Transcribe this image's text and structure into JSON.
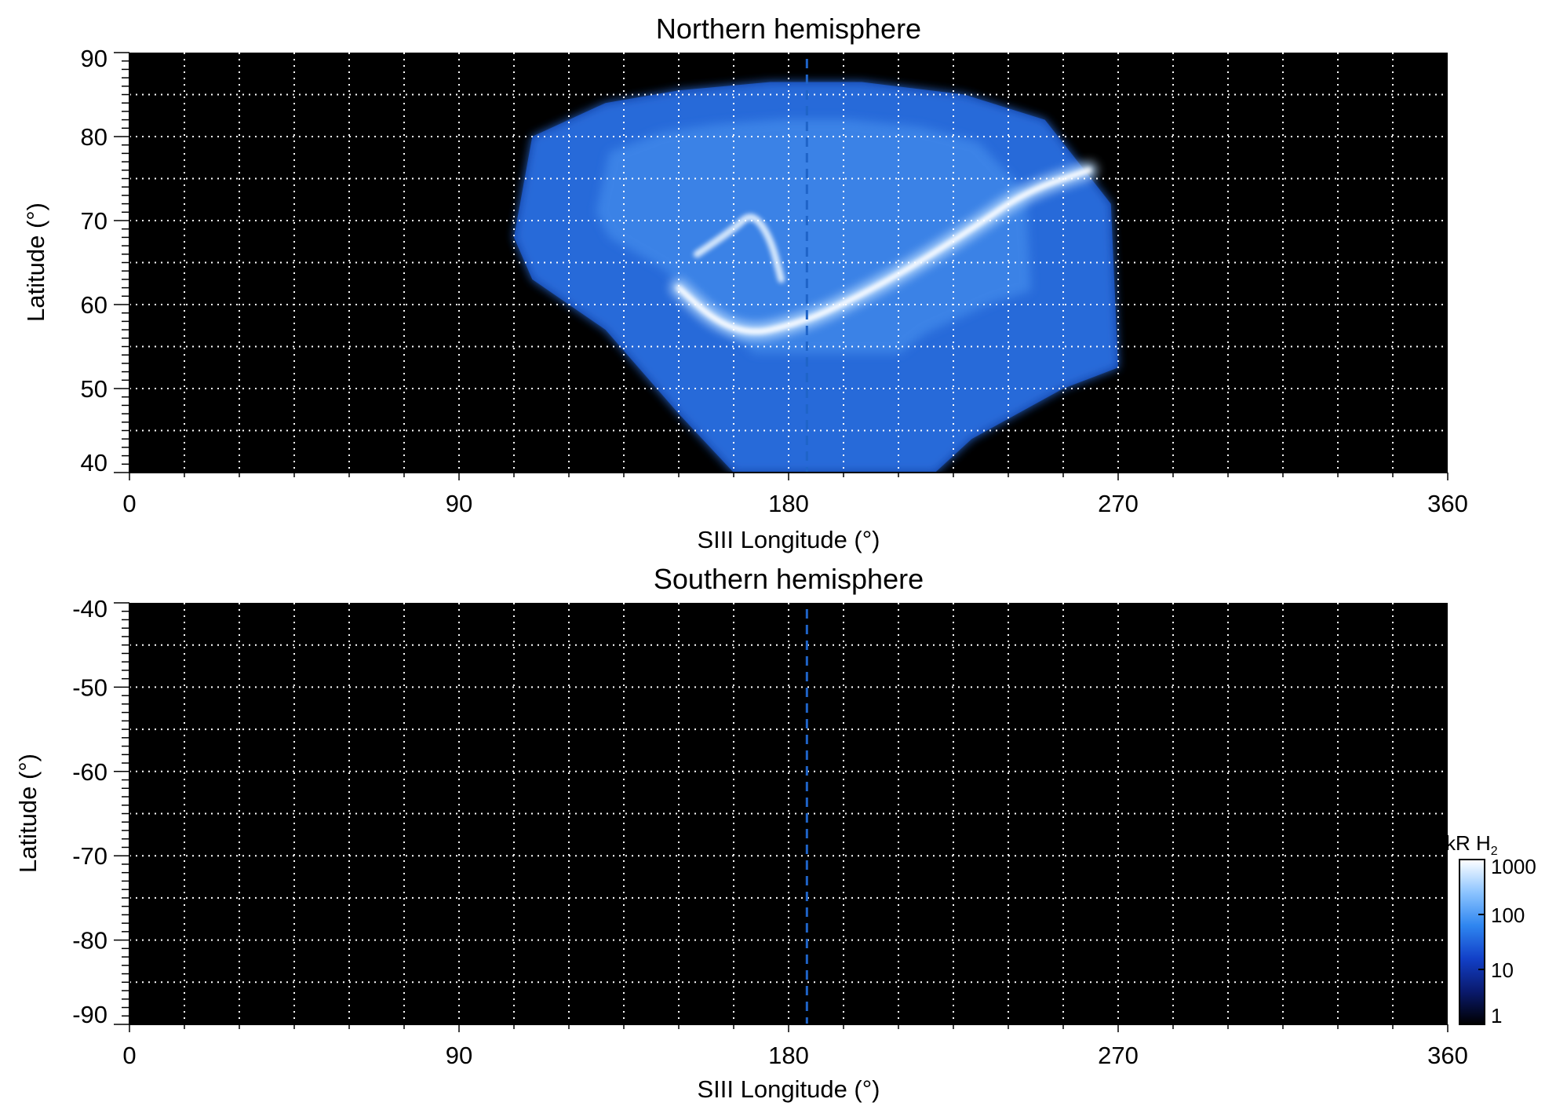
{
  "chart_data": [
    {
      "type": "heatmap",
      "title": "Northern hemisphere",
      "xlabel": "SIII Longitude (°)",
      "ylabel": "Latitude (°)",
      "xlim": [
        0,
        360
      ],
      "ylim": [
        40,
        90
      ],
      "x_ticks": [
        0,
        90,
        180,
        270,
        360
      ],
      "y_ticks": [
        40,
        50,
        60,
        70,
        80,
        90
      ],
      "x_tick_labels": [
        "0",
        "90",
        "180",
        "270",
        "360"
      ],
      "y_tick_labels": [
        "40",
        "50",
        "60",
        "70",
        "80",
        "90"
      ],
      "grid": true,
      "grid_x_step": 15,
      "grid_y_step": 5,
      "reference_longitude": 185,
      "background_color": "#000000",
      "grid_color": "#ffffff",
      "reference_line_color": "#1f64c8",
      "emission_region": {
        "outline": [
          [
            105,
            68
          ],
          [
            110,
            80
          ],
          [
            130,
            84
          ],
          [
            150,
            85.5
          ],
          [
            175,
            86.5
          ],
          [
            200,
            86.5
          ],
          [
            228,
            85
          ],
          [
            250,
            82
          ],
          [
            268,
            72
          ],
          [
            270,
            52.5
          ],
          [
            255,
            50
          ],
          [
            230,
            44
          ],
          [
            220,
            40
          ],
          [
            165,
            40
          ],
          [
            150,
            47
          ],
          [
            130,
            57
          ],
          [
            110,
            63
          ]
        ],
        "main_oval": [
          [
            150,
            62
          ],
          [
            160,
            58
          ],
          [
            170,
            56.5
          ],
          [
            180,
            57.5
          ],
          [
            190,
            59
          ],
          [
            210,
            63.5
          ],
          [
            230,
            69
          ],
          [
            245,
            73.5
          ],
          [
            262,
            76
          ]
        ],
        "inner_arc": [
          [
            155,
            66
          ],
          [
            165,
            69
          ],
          [
            170,
            71
          ],
          [
            175,
            68
          ],
          [
            178,
            63
          ]
        ]
      }
    },
    {
      "type": "heatmap",
      "title": "Southern hemisphere",
      "xlabel": "SIII Longitude (°)",
      "ylabel": "Latitude (°)",
      "xlim": [
        0,
        360
      ],
      "ylim": [
        -90,
        -40
      ],
      "x_ticks": [
        0,
        90,
        180,
        270,
        360
      ],
      "y_ticks": [
        -40,
        -50,
        -60,
        -70,
        -80,
        -90
      ],
      "x_tick_labels": [
        "0",
        "90",
        "180",
        "270",
        "360"
      ],
      "y_tick_labels": [
        "-40",
        "-50",
        "-60",
        "-70",
        "-80",
        "-90"
      ],
      "grid": true,
      "grid_x_step": 15,
      "grid_y_step": 5,
      "reference_longitude": 185,
      "background_color": "#000000",
      "grid_color": "#ffffff",
      "reference_line_color": "#1f64c8"
    }
  ],
  "colorbar": {
    "title_main": "kR H",
    "title_sub": "2",
    "scale": "log",
    "range": [
      1,
      1000
    ],
    "tick_values": [
      1,
      10,
      100,
      1000
    ],
    "tick_labels": [
      "1",
      "10",
      "100",
      "1000"
    ],
    "stops": [
      "#000000",
      "#0a1a6e",
      "#1240c8",
      "#2f86f0",
      "#8cc4ff",
      "#ffffff"
    ]
  }
}
